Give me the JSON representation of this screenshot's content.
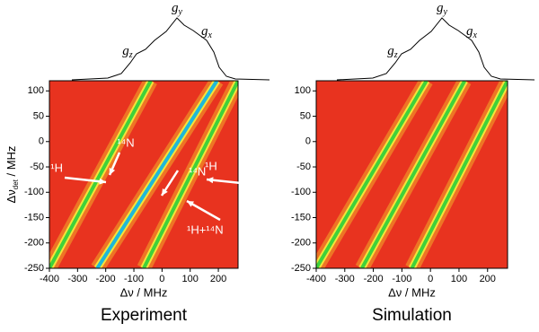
{
  "chart_data": [
    {
      "type": "heatmap",
      "title": "Experiment",
      "xlabel": "Δν / MHz",
      "ylabel": {
        "main": "Δν",
        "sub": "det",
        "unit": " / MHz"
      },
      "xlim": [
        -400,
        270
      ],
      "ylim": [
        -250,
        120
      ],
      "xticks": [
        -400,
        -300,
        -200,
        -100,
        0,
        100,
        200
      ],
      "yticks": [
        -250,
        -200,
        -150,
        -100,
        -50,
        0,
        50,
        100
      ],
      "background": "#e8331f",
      "spectrum_labels": [
        {
          "g": "g",
          "sub": "z"
        },
        {
          "g": "g",
          "sub": "y"
        },
        {
          "g": "g",
          "sub": "x"
        }
      ],
      "annotations": [
        "¹H",
        "¹⁴N",
        "¹⁴N",
        "¹H",
        "¹H+¹⁴N"
      ],
      "series": [
        {
          "color": "#3fd23a",
          "x": [
            -400,
            -40
          ],
          "values": [
            -250,
            120
          ]
        },
        {
          "color": "#1fb8d8",
          "x": [
            -230,
            195
          ],
          "values": [
            -250,
            120
          ]
        },
        {
          "color": "#3fd23a",
          "x": [
            -65,
            270
          ],
          "values": [
            -250,
            120
          ]
        }
      ]
    },
    {
      "type": "heatmap",
      "title": "Simulation",
      "xlabel": "Δν / MHz",
      "ylabel": null,
      "xlim": [
        -400,
        270
      ],
      "ylim": [
        -250,
        120
      ],
      "xticks": [
        -400,
        -300,
        -200,
        -100,
        0,
        100,
        200
      ],
      "yticks": [
        -250,
        -200,
        -150,
        -100,
        -50,
        0,
        50,
        100
      ],
      "background": "#e8331f",
      "spectrum_labels": [
        {
          "g": "g",
          "sub": "z"
        },
        {
          "g": "g",
          "sub": "y"
        },
        {
          "g": "g",
          "sub": "x"
        }
      ],
      "annotations": [],
      "series": [
        {
          "color": "#3fd23a",
          "x": [
            -400,
            -14
          ],
          "values": [
            -250,
            120
          ]
        },
        {
          "color": "#3fd23a",
          "x": [
            -240,
            120
          ],
          "values": [
            -250,
            120
          ]
        },
        {
          "color": "#3fd23a",
          "x": [
            -65,
            270
          ],
          "values": [
            -250,
            120
          ]
        }
      ]
    }
  ]
}
